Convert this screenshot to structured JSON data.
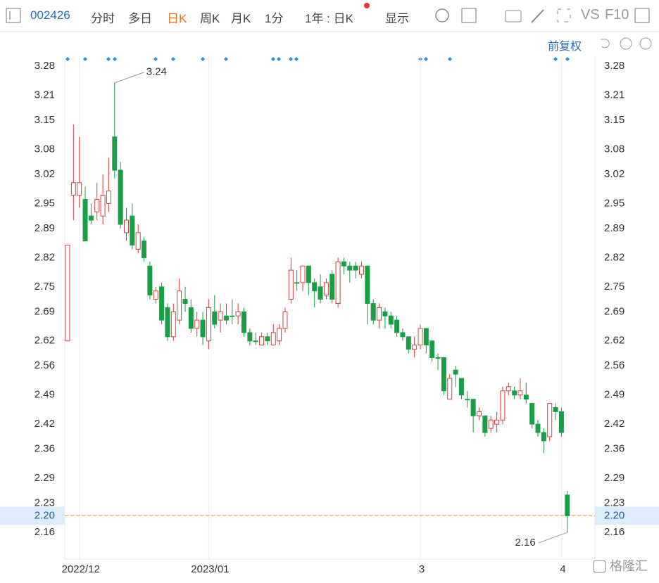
{
  "toolbar": {
    "code": "002426",
    "tabs": [
      "分时",
      "多日",
      "日K",
      "周K",
      "月K"
    ],
    "minute": "1分",
    "period": "1年 : 日K",
    "display": "显示",
    "vs": "VS",
    "f10": "F10",
    "adjust": "前复权"
  },
  "watermark": "格隆汇",
  "chart_data": {
    "type": "candlestick",
    "categories": [
      null,
      null,
      "2022/12",
      null,
      null,
      null,
      null,
      null,
      null,
      null,
      null,
      null,
      null,
      null,
      null,
      null,
      null,
      null,
      null,
      null,
      null,
      null,
      null,
      null,
      "2023/01",
      null,
      null,
      null,
      null,
      null,
      null,
      null,
      null,
      null,
      null,
      null,
      null,
      null,
      null,
      null,
      null,
      null,
      null,
      null,
      null,
      null,
      null,
      null,
      null,
      null,
      null,
      null,
      null,
      null,
      null,
      null,
      null,
      null,
      null,
      null,
      "3",
      null,
      null,
      null,
      null,
      null,
      null,
      null,
      null,
      null,
      null,
      null,
      null,
      null,
      null,
      null,
      null,
      null,
      null,
      null,
      null,
      null,
      null,
      null,
      "4",
      null
    ],
    "open": [
      2.62,
      2.97,
      2.97,
      2.96,
      2.92,
      2.93,
      2.92,
      2.95,
      3.11,
      3.03,
      2.88,
      2.92,
      2.84,
      2.86,
      2.8,
      2.72,
      2.75,
      2.7,
      2.63,
      2.67,
      2.72,
      2.7,
      2.65,
      2.67,
      2.62,
      2.69,
      2.67,
      2.68,
      2.68,
      2.68,
      2.69,
      2.64,
      2.62,
      2.61,
      2.63,
      2.61,
      2.62,
      2.65,
      2.72,
      2.76,
      2.76,
      2.8,
      2.76,
      2.75,
      2.73,
      2.78,
      2.71,
      2.81,
      2.8,
      2.8,
      2.78,
      2.8,
      2.71,
      2.67,
      2.69,
      2.68,
      2.67,
      2.64,
      2.63,
      2.6,
      2.61,
      2.65,
      2.62,
      2.58,
      2.58,
      2.48,
      2.55,
      2.53,
      2.48,
      2.48,
      2.44,
      2.44,
      2.41,
      2.42,
      2.43,
      2.5,
      2.5,
      2.49,
      2.49,
      2.47,
      2.42,
      2.4,
      2.39,
      2.46,
      2.45,
      2.25
    ],
    "high": [
      2.85,
      3.14,
      3.11,
      2.99,
      2.95,
      3.0,
      3.02,
      3.06,
      3.24,
      3.05,
      2.94,
      2.95,
      2.9,
      2.87,
      2.81,
      2.75,
      2.76,
      2.71,
      2.71,
      2.77,
      2.75,
      2.72,
      2.69,
      2.69,
      2.72,
      2.73,
      2.71,
      2.71,
      2.72,
      2.71,
      2.7,
      2.65,
      2.64,
      2.64,
      2.64,
      2.66,
      2.66,
      2.7,
      2.82,
      2.79,
      2.8,
      2.8,
      2.77,
      2.78,
      2.77,
      2.79,
      2.82,
      2.82,
      2.81,
      2.81,
      2.81,
      2.8,
      2.72,
      2.71,
      2.7,
      2.69,
      2.68,
      2.65,
      2.63,
      2.63,
      2.66,
      2.65,
      2.62,
      2.59,
      2.58,
      2.54,
      2.56,
      2.53,
      2.5,
      2.48,
      2.46,
      2.44,
      2.44,
      2.45,
      2.51,
      2.52,
      2.51,
      2.53,
      2.52,
      2.47,
      2.43,
      2.41,
      2.47,
      2.47,
      2.46,
      2.26
    ],
    "low": [
      2.62,
      2.91,
      2.94,
      2.86,
      2.9,
      2.91,
      2.9,
      2.93,
      3.01,
      2.89,
      2.86,
      2.84,
      2.83,
      2.81,
      2.72,
      2.71,
      2.66,
      2.62,
      2.62,
      2.66,
      2.69,
      2.64,
      2.63,
      2.61,
      2.6,
      2.65,
      2.64,
      2.66,
      2.66,
      2.66,
      2.63,
      2.61,
      2.61,
      2.61,
      2.61,
      2.61,
      2.61,
      2.64,
      2.71,
      2.74,
      2.74,
      2.73,
      2.7,
      2.71,
      2.72,
      2.71,
      2.7,
      2.78,
      2.76,
      2.77,
      2.77,
      2.66,
      2.66,
      2.65,
      2.65,
      2.65,
      2.63,
      2.62,
      2.59,
      2.58,
      2.6,
      2.59,
      2.57,
      2.55,
      2.49,
      2.48,
      2.51,
      2.48,
      2.46,
      2.4,
      2.43,
      2.39,
      2.4,
      2.4,
      2.42,
      2.49,
      2.48,
      2.48,
      2.47,
      2.41,
      2.39,
      2.35,
      2.38,
      2.43,
      2.39,
      2.16
    ],
    "close": [
      2.85,
      3.0,
      3.0,
      2.86,
      2.91,
      2.96,
      2.97,
      2.98,
      3.03,
      2.9,
      2.91,
      2.85,
      2.88,
      2.82,
      2.73,
      2.74,
      2.67,
      2.63,
      2.69,
      2.74,
      2.71,
      2.65,
      2.67,
      2.63,
      2.7,
      2.66,
      2.69,
      2.67,
      2.68,
      2.69,
      2.64,
      2.62,
      2.62,
      2.63,
      2.62,
      2.64,
      2.65,
      2.69,
      2.79,
      2.76,
      2.8,
      2.76,
      2.74,
      2.72,
      2.76,
      2.72,
      2.81,
      2.8,
      2.79,
      2.79,
      2.8,
      2.71,
      2.67,
      2.7,
      2.68,
      2.66,
      2.64,
      2.63,
      2.6,
      2.61,
      2.65,
      2.61,
      2.58,
      2.58,
      2.5,
      2.53,
      2.54,
      2.49,
      2.48,
      2.44,
      2.45,
      2.4,
      2.43,
      2.43,
      2.5,
      2.51,
      2.49,
      2.5,
      2.48,
      2.42,
      2.4,
      2.38,
      2.47,
      2.45,
      2.4,
      2.2
    ],
    "up_color": "#e03c3c",
    "down_color": "#1a9e45",
    "ylim": [
      2.1,
      3.3
    ],
    "yticks": [
      3.28,
      3.21,
      3.15,
      3.08,
      3.02,
      2.95,
      2.89,
      2.82,
      2.75,
      2.69,
      2.62,
      2.56,
      2.49,
      2.42,
      2.36,
      2.29,
      2.23,
      2.16
    ],
    "price_line": {
      "value": 2.2,
      "label": "2.20"
    }
  }
}
